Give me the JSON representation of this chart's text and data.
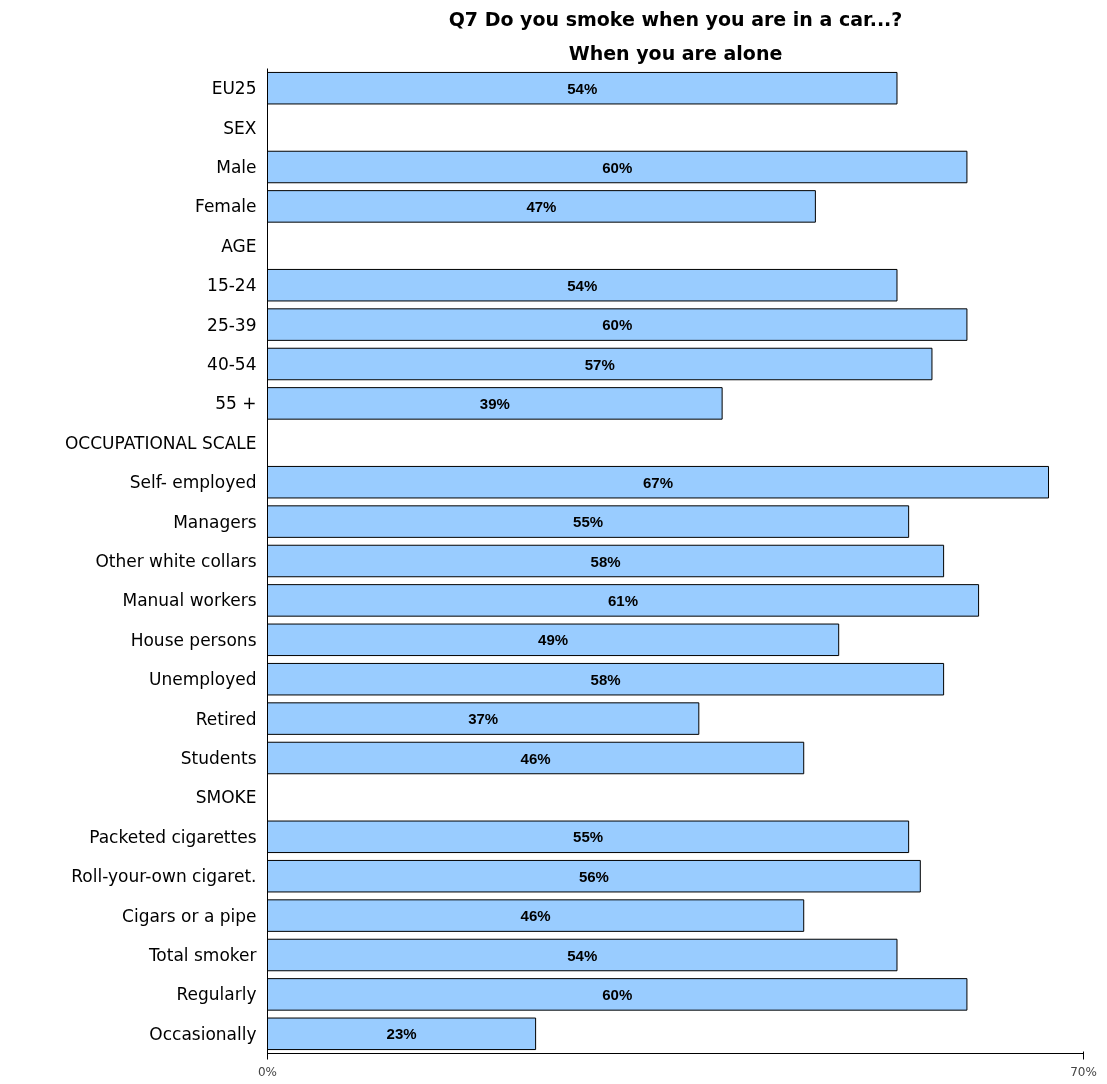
{
  "chart_data": {
    "type": "bar",
    "orientation": "horizontal",
    "title": "Q7 Do you smoke when you are in a car...?",
    "subtitle": "When you are alone",
    "categories": [
      "EU25",
      "SEX",
      "Male",
      "Female",
      "AGE",
      "15-24",
      "25-39",
      "40-54",
      "55 +",
      "OCCUPATIONAL SCALE",
      "Self- employed",
      "Managers",
      "Other white collars",
      "Manual workers",
      "House persons",
      "Unemployed",
      "Retired",
      "Students",
      "SMOKE",
      "Packeted cigarettes",
      "Roll-your-own cigaret.",
      "Cigars or a pipe",
      "Total smoker",
      "Regularly",
      "Occasionally"
    ],
    "values": [
      54,
      null,
      60,
      47,
      null,
      54,
      60,
      57,
      39,
      null,
      67,
      55,
      58,
      61,
      49,
      58,
      37,
      46,
      null,
      55,
      56,
      46,
      54,
      60,
      23
    ],
    "value_labels": [
      "54%",
      null,
      "60%",
      "47%",
      null,
      "54%",
      "60%",
      "57%",
      "39%",
      null,
      "67%",
      "55%",
      "58%",
      "61%",
      "49%",
      "58%",
      "37%",
      "46%",
      null,
      "55%",
      "56%",
      "46%",
      "54%",
      "60%",
      "23%"
    ],
    "color": "#99ccff",
    "xlim": [
      0,
      70
    ],
    "xticks": [
      {
        "value": 0,
        "label": "0%"
      },
      {
        "value": 70,
        "label": "70%"
      }
    ],
    "grid": false
  }
}
